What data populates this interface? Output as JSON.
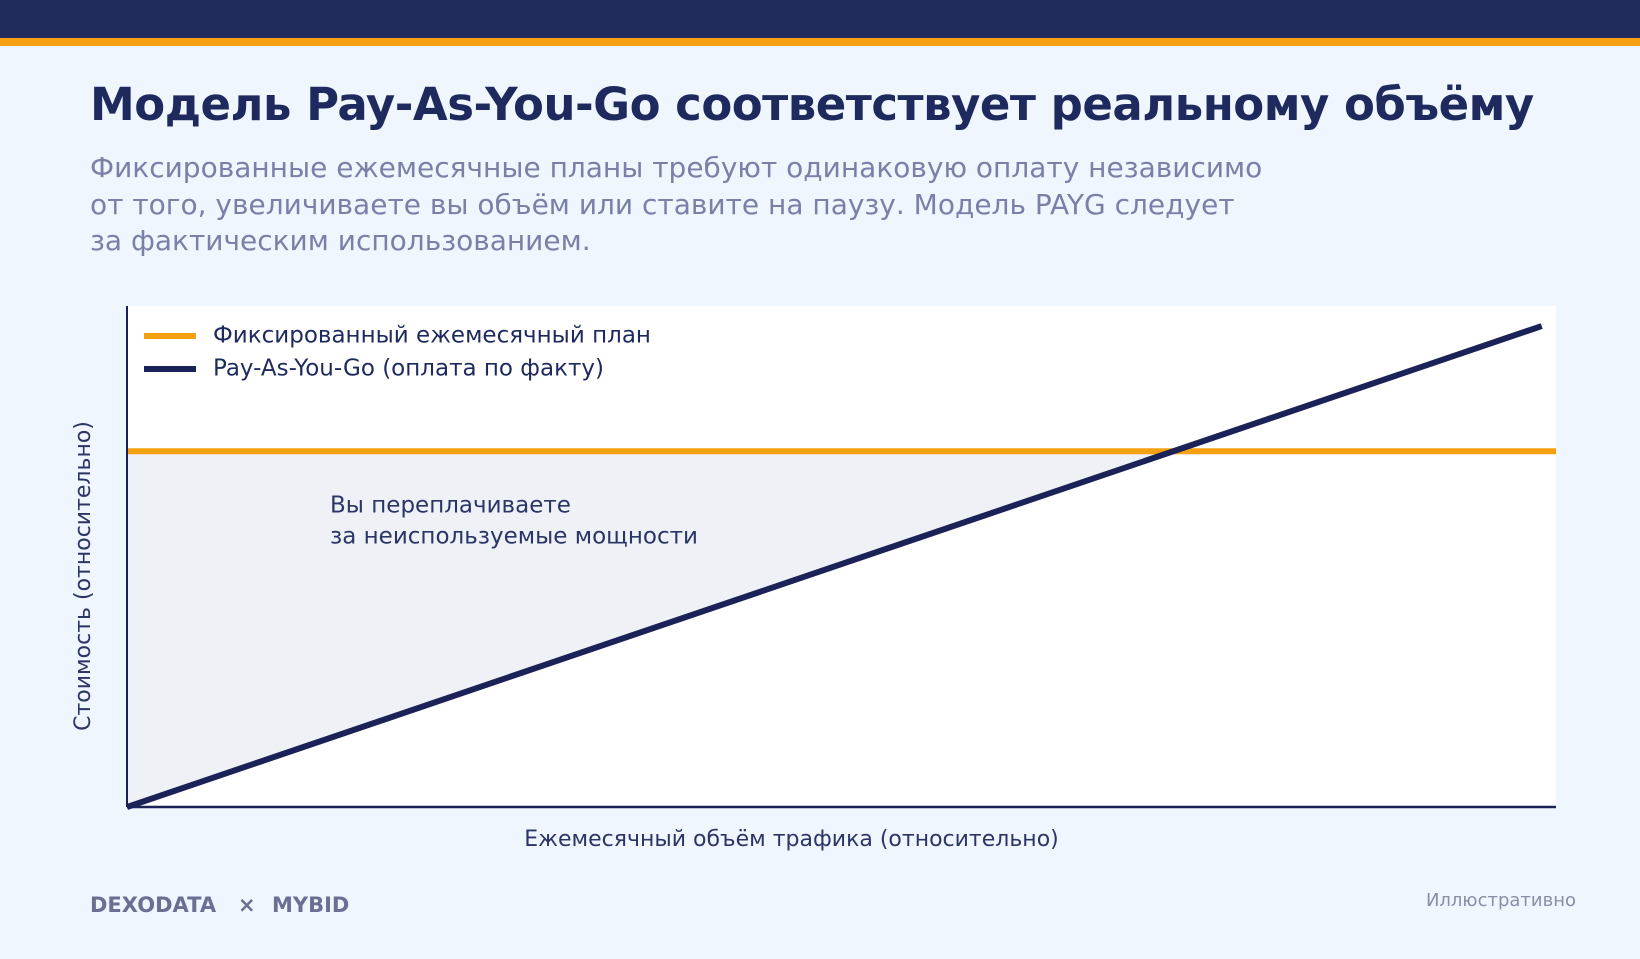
{
  "chart_data": {
    "type": "line",
    "title": "Модель Pay-As-You-Go соответствует реальному объёму",
    "subtitle": [
      "Фиксированные ежемесячные планы требуют одинаковую оплату независимо",
      "от того, увеличиваете вы объём или ставите на паузу. Модель PAYG следует",
      "за фактическим использованием."
    ],
    "x_label": "Ежемесячный объём трафика (относительно)",
    "y_label": "Стоимость (относительно)",
    "annotation": [
      "Вы переплачиваете",
      "за неиспользуемые мощности"
    ],
    "xlim": [
      0,
      1
    ],
    "ylim": [
      0,
      1
    ],
    "series": [
      {
        "name": "Фиксированный ежемесячный план",
        "color": "#f5a00f",
        "x": [
          0,
          1
        ],
        "values": [
          0.71,
          0.71
        ]
      },
      {
        "name": "Pay-As-You-Go (оплата по факту)",
        "color": "#1a2258",
        "x": [
          0,
          0.99
        ],
        "values": [
          0,
          0.96
        ]
      }
    ],
    "legend": "upper left",
    "shade_between": true
  },
  "footer": {
    "brand": [
      "DEXODATA",
      "×",
      "MYBID"
    ],
    "note": "Иллюстративно"
  }
}
